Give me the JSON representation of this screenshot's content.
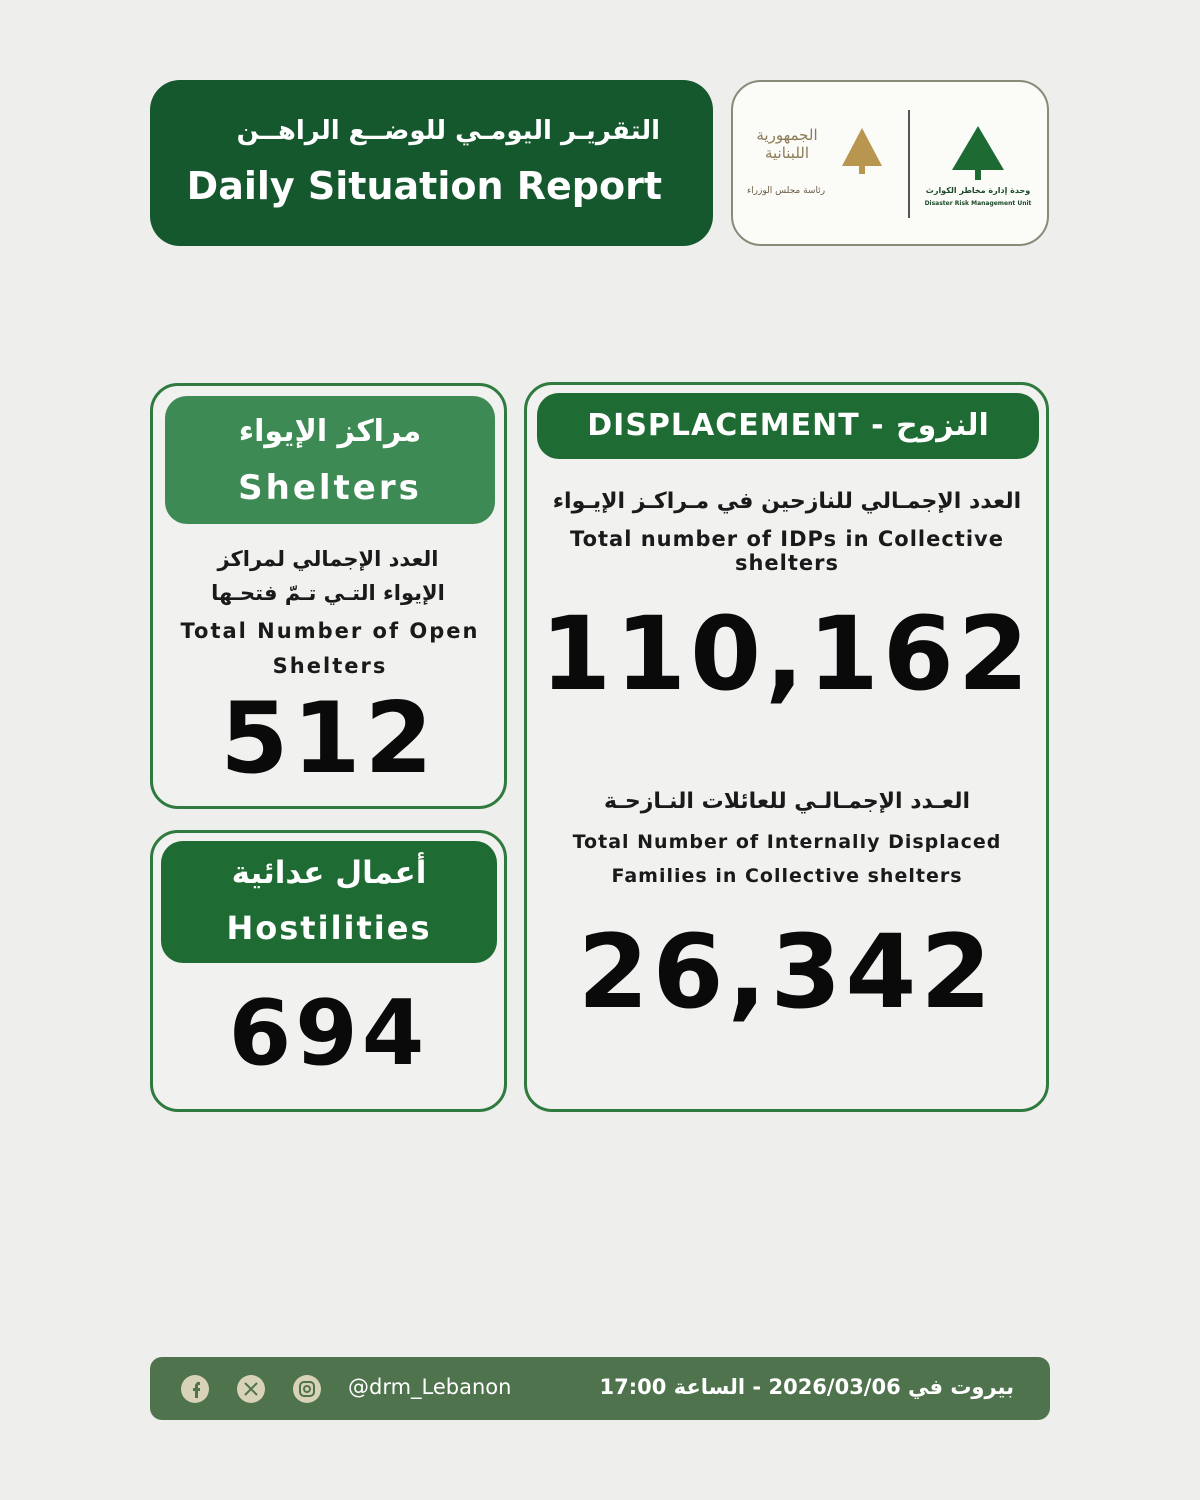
{
  "header": {
    "title_ar": "التقريـر اليومـي للوضــع الراهــن",
    "title_en": "Daily Situation Report"
  },
  "logos": {
    "republic_ar": "الجمهورية اللبنانية",
    "presidency_ar": "رئاسة مجلس الوزراء",
    "unit_ar": "وحدة إدارة مخاطر الكوارث",
    "unit_en": "Disaster Risk Management Unit"
  },
  "shelters": {
    "title_ar": "مراكز الإيواء",
    "title_en": "Shelters",
    "label_ar": "العدد الإجمالي لمراكز الإيواء التـي تـمّ فتحـها",
    "label_en": "Total Number of Open Shelters",
    "value": "512"
  },
  "hostilities": {
    "title_ar": "أعمال عدائية",
    "title_en": "Hostilities",
    "value": "694"
  },
  "displacement": {
    "title": "DISPLACEMENT - النزوح",
    "idps": {
      "label_ar": "العدد الإجمـالي للنازحين في مـراكـز الإيـواء",
      "label_en": "Total number of IDPs in Collective shelters",
      "value": "110,162"
    },
    "families": {
      "label_ar": "العـدد الإجمـالـي للعائلات النـازحـة",
      "label_en": "Total Number of Internally Displaced Families in Collective shelters",
      "value": "26,342"
    }
  },
  "footer": {
    "handle": "@drm_Lebanon",
    "date": "بيروت في 2026/03/06 - الساعة 17:00"
  }
}
